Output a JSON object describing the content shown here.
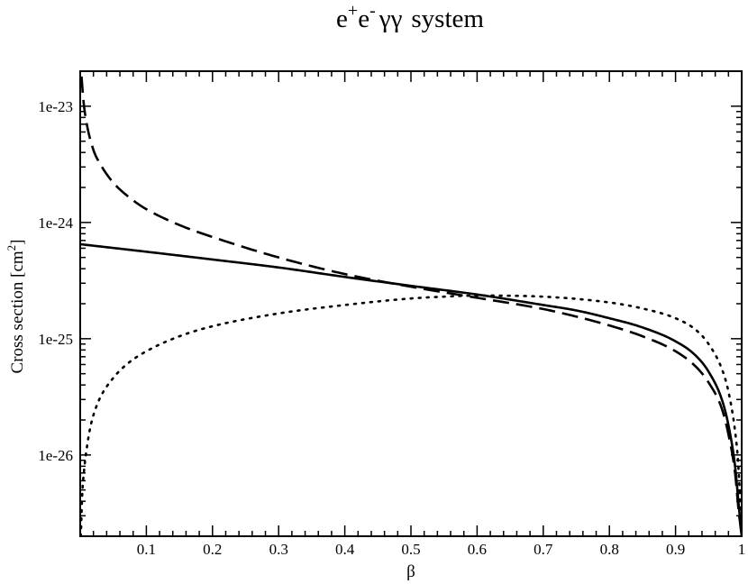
{
  "chart_data": {
    "type": "line",
    "title": {
      "particles": [
        "e",
        "+",
        "e",
        "-",
        "γγ"
      ],
      "suffix": "system"
    },
    "xlabel": "β",
    "ylabel": {
      "text": "Cross section [cm",
      "superscript": "2",
      "close": "]"
    },
    "xlim": [
      0,
      1
    ],
    "ylim": [
      2e-27,
      2e-23
    ],
    "yscale": "log",
    "grid": false,
    "legend": "none",
    "x_ticks": [
      {
        "value": 0.1,
        "label": "0.1"
      },
      {
        "value": 0.2,
        "label": "0.2"
      },
      {
        "value": 0.3,
        "label": "0.3"
      },
      {
        "value": 0.4,
        "label": "0.4"
      },
      {
        "value": 0.5,
        "label": "0.5"
      },
      {
        "value": 0.6,
        "label": "0.6"
      },
      {
        "value": 0.7,
        "label": "0.7"
      },
      {
        "value": 0.8,
        "label": "0.8"
      },
      {
        "value": 0.9,
        "label": "0.9"
      },
      {
        "value": 1.0,
        "label": "1"
      }
    ],
    "y_ticks": [
      {
        "value": 1e-23,
        "label": "1e-23"
      },
      {
        "value": 1e-24,
        "label": "1e-24"
      },
      {
        "value": 1e-25,
        "label": "1e-25"
      },
      {
        "value": 1e-26,
        "label": "1e-26"
      }
    ],
    "series": [
      {
        "style": "solid",
        "color": "#000000",
        "x": [
          0.0,
          0.1,
          0.2,
          0.3,
          0.4,
          0.5,
          0.6,
          0.7,
          0.75,
          0.8,
          0.85,
          0.9,
          0.93,
          0.95,
          0.97,
          0.98,
          0.99,
          0.995,
          1.0
        ],
        "y": [
          6.5e-25,
          5.6e-25,
          4.8e-25,
          4.1e-25,
          3.4e-25,
          2.85e-25,
          2.4e-25,
          1.95e-25,
          1.75e-25,
          1.5e-25,
          1.25e-25,
          9.5e-26,
          7.2e-26,
          5.2e-26,
          3e-26,
          1.8e-26,
          8e-27,
          4e-27,
          2e-27
        ]
      },
      {
        "style": "dashed",
        "color": "#000000",
        "x": [
          0.002,
          0.005,
          0.01,
          0.02,
          0.03,
          0.05,
          0.08,
          0.1,
          0.15,
          0.2,
          0.3,
          0.4,
          0.5,
          0.6,
          0.7,
          0.75,
          0.8,
          0.85,
          0.9,
          0.93,
          0.95,
          0.97,
          0.98,
          0.99,
          0.995,
          1.0
        ],
        "y": [
          1.8e-23,
          1.1e-23,
          7e-24,
          4.2e-24,
          3.2e-24,
          2.2e-24,
          1.55e-24,
          1.3e-24,
          9.5e-25,
          7.5e-25,
          5e-25,
          3.6e-25,
          2.8e-25,
          2.25e-25,
          1.8e-25,
          1.55e-25,
          1.3e-25,
          1.05e-25,
          7.8e-26,
          5.8e-26,
          4.2e-26,
          2.5e-26,
          1.5e-26,
          7e-27,
          3.5e-27,
          2e-27
        ]
      },
      {
        "style": "dotted",
        "color": "#000000",
        "x": [
          0.001,
          0.003,
          0.006,
          0.01,
          0.015,
          0.02,
          0.03,
          0.05,
          0.07,
          0.1,
          0.15,
          0.2,
          0.3,
          0.4,
          0.5,
          0.55,
          0.6,
          0.7,
          0.8,
          0.85,
          0.9,
          0.93,
          0.95,
          0.97,
          0.98,
          0.99,
          0.995,
          1.0
        ],
        "y": [
          2e-27,
          4.5e-27,
          7.5e-27,
          1.15e-26,
          1.7e-26,
          2.2e-26,
          3.1e-26,
          4.6e-26,
          6e-26,
          7.8e-26,
          1.05e-25,
          1.28e-25,
          1.65e-25,
          1.95e-25,
          2.22e-25,
          2.3e-25,
          2.35e-25,
          2.3e-25,
          2.05e-25,
          1.82e-25,
          1.5e-25,
          1.2e-25,
          9e-26,
          5.5e-26,
          3.5e-26,
          1.6e-26,
          8e-27,
          2e-27
        ]
      }
    ]
  }
}
